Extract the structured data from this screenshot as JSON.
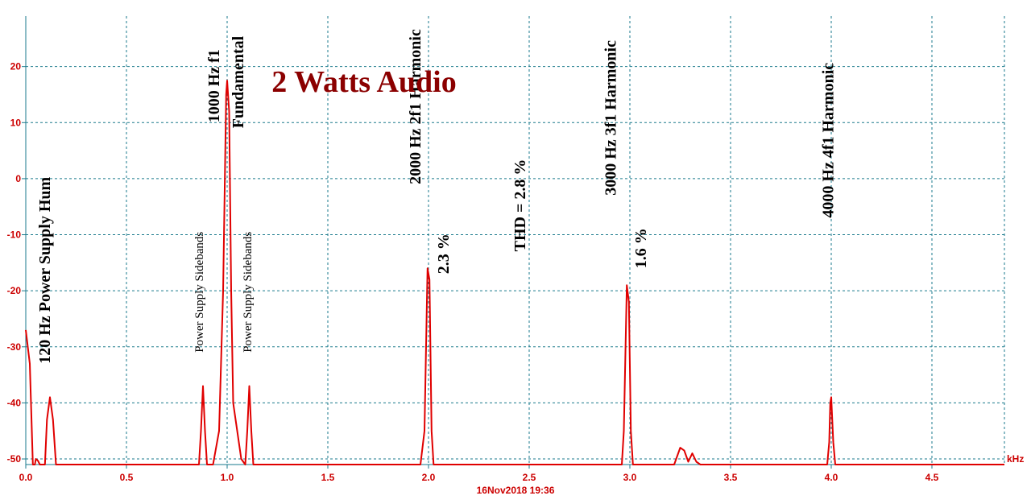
{
  "chart_data": {
    "type": "line",
    "title": "2 Watts Audio",
    "xunit": "kHz",
    "ylabel": "",
    "xlim": [
      0,
      4.86
    ],
    "ylim": [
      -51,
      29
    ],
    "x_ticks": [
      "0.0",
      "0.5",
      "1.0",
      "1.5",
      "2.0",
      "2.5",
      "3.0",
      "3.5",
      "4.0",
      "4.5"
    ],
    "y_ticks": [
      "20",
      "10",
      "0",
      "-10",
      "-20",
      "-30",
      "-40",
      "-50"
    ],
    "grid": true,
    "series_color": "#e00000",
    "timestamp": "16Nov2018  19:36",
    "series": [
      {
        "points": [
          [
            0.0,
            -27
          ],
          [
            0.02,
            -33
          ],
          [
            0.035,
            -51
          ],
          [
            0.045,
            -51
          ],
          [
            0.05,
            -50
          ],
          [
            0.06,
            -50.3
          ],
          [
            0.07,
            -51
          ],
          [
            0.095,
            -51
          ],
          [
            0.105,
            -43
          ],
          [
            0.12,
            -39
          ],
          [
            0.135,
            -43
          ],
          [
            0.15,
            -51
          ],
          [
            0.86,
            -51
          ],
          [
            0.87,
            -45
          ],
          [
            0.88,
            -37
          ],
          [
            0.89,
            -45
          ],
          [
            0.9,
            -51
          ],
          [
            0.93,
            -51
          ],
          [
            0.96,
            -45
          ],
          [
            0.98,
            -20
          ],
          [
            0.995,
            15
          ],
          [
            1.0,
            17.5
          ],
          [
            1.01,
            12
          ],
          [
            1.02,
            -20
          ],
          [
            1.03,
            -40
          ],
          [
            1.05,
            -45
          ],
          [
            1.07,
            -50
          ],
          [
            1.09,
            -51
          ],
          [
            1.1,
            -45
          ],
          [
            1.11,
            -37
          ],
          [
            1.12,
            -45
          ],
          [
            1.13,
            -51
          ],
          [
            1.96,
            -51
          ],
          [
            1.98,
            -45
          ],
          [
            1.995,
            -16
          ],
          [
            2.005,
            -18
          ],
          [
            2.015,
            -45
          ],
          [
            2.025,
            -51
          ],
          [
            2.96,
            -51
          ],
          [
            2.97,
            -45
          ],
          [
            2.985,
            -19
          ],
          [
            2.995,
            -22
          ],
          [
            3.005,
            -45
          ],
          [
            3.015,
            -51
          ],
          [
            3.22,
            -51
          ],
          [
            3.25,
            -48
          ],
          [
            3.27,
            -48.5
          ],
          [
            3.29,
            -50.5
          ],
          [
            3.31,
            -49
          ],
          [
            3.33,
            -50.5
          ],
          [
            3.35,
            -51
          ],
          [
            3.98,
            -51
          ],
          [
            3.99,
            -47
          ],
          [
            3.995,
            -40
          ],
          [
            4.0,
            -39
          ],
          [
            4.01,
            -47
          ],
          [
            4.02,
            -51
          ],
          [
            4.86,
            -51
          ]
        ]
      }
    ],
    "annotations": [
      {
        "text": "120 Hz Power Supply Hum",
        "x": 0.12,
        "y": -33
      },
      {
        "text": "Power Supply Sidebands",
        "x": 0.88,
        "y": -31
      },
      {
        "text": "1000 Hz f1",
        "x": 0.96,
        "y": 10
      },
      {
        "text": "Fundamental",
        "x": 1.08,
        "y": 9
      },
      {
        "text": "Power Supply Sidebands",
        "x": 1.12,
        "y": -31
      },
      {
        "text": "2000 Hz  2f1 Harmonic",
        "x": 1.96,
        "y": -1
      },
      {
        "text": "2.3 %",
        "x": 2.1,
        "y": -17
      },
      {
        "text": "THD = 2.8 %",
        "x": 2.48,
        "y": -13
      },
      {
        "text": "3000 Hz  3f1 Harmonic",
        "x": 2.93,
        "y": -3
      },
      {
        "text": "1.6 %",
        "x": 3.08,
        "y": -16
      },
      {
        "text": "4000 Hz  4f1 Harmonic",
        "x": 4.01,
        "y": -7
      }
    ]
  }
}
